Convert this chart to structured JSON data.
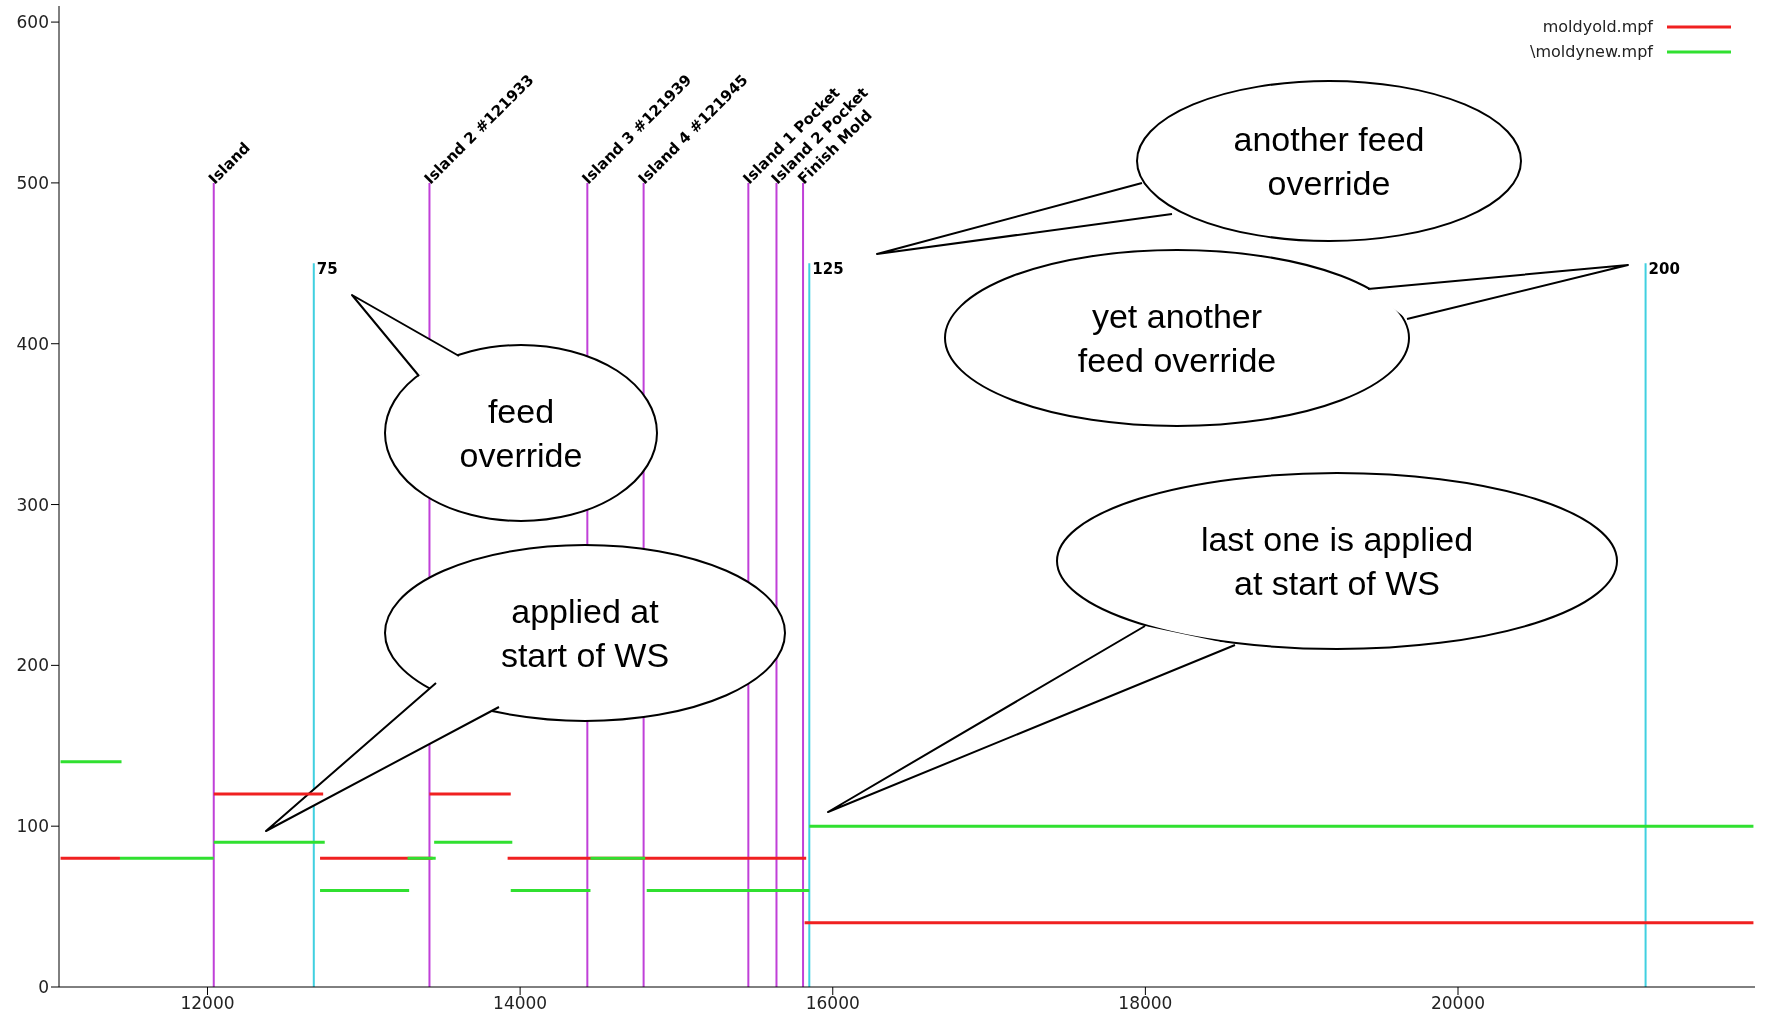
{
  "chart_data": {
    "type": "line",
    "xlim": [
      11050,
      21900
    ],
    "ylim": [
      0,
      610
    ],
    "xticks": [
      12000,
      14000,
      16000,
      18000,
      20000
    ],
    "yticks": [
      0,
      100,
      200,
      300,
      400,
      500,
      600
    ],
    "legend": "top right",
    "marker": "none",
    "line_style": "solid",
    "series": [
      {
        "name": "moldyold.mpf",
        "color": "#f02020",
        "x": [
          11060,
          11440,
          null,
          12040,
          12740,
          null,
          12720,
          13440,
          null,
          13420,
          13940,
          null,
          13920,
          15830,
          null,
          15820,
          21890
        ],
        "values": [
          80,
          80,
          null,
          120,
          120,
          null,
          80,
          80,
          null,
          120,
          120,
          null,
          80,
          80,
          null,
          40,
          40
        ]
      },
      {
        "name": "\\moldynew.mpf",
        "color": "#30e030",
        "x": [
          11060,
          11450,
          null,
          11440,
          12040,
          null,
          12040,
          12750,
          null,
          12720,
          13290,
          null,
          13280,
          13460,
          null,
          13450,
          13950,
          null,
          13940,
          14450,
          null,
          14450,
          14800,
          null,
          14810,
          15850,
          null,
          15850,
          21890
        ],
        "values": [
          140,
          140,
          null,
          80,
          80,
          null,
          90,
          90,
          null,
          60,
          60,
          null,
          80,
          80,
          null,
          90,
          90,
          null,
          60,
          60,
          null,
          80,
          80,
          null,
          60,
          60,
          null,
          100,
          100
        ]
      },
      {
        "type": "line",
        "color": "#c040d8",
        "x": [
          12040,
          12040,
          null,
          13420,
          13420,
          null,
          14430,
          14430,
          null,
          14790,
          14790,
          null,
          15460,
          15460,
          null,
          15640,
          15640,
          null,
          15810,
          15810
        ],
        "values": [
          0,
          500,
          null,
          0,
          500,
          null,
          0,
          500,
          null,
          0,
          500,
          null,
          0,
          500,
          null,
          0,
          500,
          null,
          0,
          500
        ]
      },
      {
        "type": "line",
        "color": "#40d0e0",
        "x": [
          12680,
          12680,
          null,
          15850,
          15850,
          null,
          21200,
          21200
        ],
        "values": [
          0,
          450,
          null,
          0,
          450,
          null,
          0,
          450
        ]
      }
    ],
    "annotations": [
      {
        "text": "Island",
        "x": 12040,
        "y": 500
      },
      {
        "text": "Island 2 #121933",
        "x": 13420,
        "y": 500
      },
      {
        "text": "Island 3 #121939",
        "x": 14430,
        "y": 500
      },
      {
        "text": "Island 4 #121945",
        "x": 14790,
        "y": 500
      },
      {
        "text": "Island 1 Pocket",
        "x": 15460,
        "y": 500
      },
      {
        "text": "Island 2 Pocket",
        "x": 15640,
        "y": 500
      },
      {
        "text": "Finish Mold",
        "x": 15810,
        "y": 500
      },
      {
        "text": "75",
        "x": 12680,
        "y": 450
      },
      {
        "text": "125",
        "x": 15850,
        "y": 450
      },
      {
        "text": "200",
        "x": 21200,
        "y": 450
      },
      "another feed override",
      "yet another feed override",
      "feed override",
      "last one is applied at start of WS",
      "applied at start of WS"
    ]
  }
}
